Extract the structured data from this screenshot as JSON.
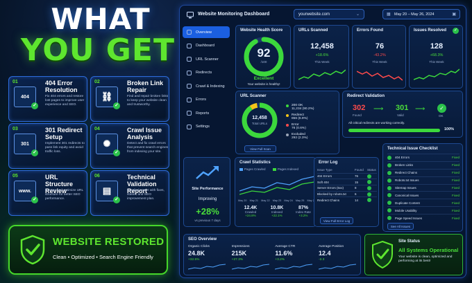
{
  "hero": {
    "line1": "WHAT",
    "line2": "YOU GET"
  },
  "features": [
    {
      "num": "01",
      "title": "404 Error Resolution",
      "desc": "Fix 404 errors and restore lost pages to improve user experience and SEO.",
      "icon": "404-window-icon",
      "badge": "404"
    },
    {
      "num": "02",
      "title": "Broken Link Repair",
      "desc": "Find and repair broken links to keep your website clean and trustworthy.",
      "icon": "broken-link-icon"
    },
    {
      "num": "03",
      "title": "301 Redirect Setup",
      "desc": "Implement 301 redirects to pass link equity and avoid traffic loss.",
      "icon": "redirect-301-icon",
      "badge": "301"
    },
    {
      "num": "04",
      "title": "Crawl Issue Analysis",
      "desc": "Detect and fix crawl errors that prevent search engines from indexing your site.",
      "icon": "bug-search-icon"
    },
    {
      "num": "05",
      "title": "URL Structure Review",
      "desc": "Review and optimize URL structure for better SEO performance.",
      "icon": "www-window-icon",
      "badge": "www."
    },
    {
      "num": "06",
      "title": "Technical Validation Report",
      "desc": "Detailed report with fixes, status, and SEO improvement plan.",
      "icon": "clipboard-report-icon"
    }
  ],
  "restored": {
    "title": "WEBSITE RESTORED",
    "subtitle": "Clean  •  Optimized  •  Search Engine Friendly"
  },
  "dashboard": {
    "title": "Website Monitoring Dashboard",
    "domain": "yourwebsite.com",
    "date_range": "May 20 – May 26, 2024",
    "nav": [
      "Overview",
      "Dashboard",
      "URL Scanner",
      "Redirects",
      "Crawl & Indexing",
      "Errors",
      "Reports",
      "Settings"
    ],
    "health": {
      "title": "Website Health Score",
      "score": "92",
      "out_of": "/100",
      "status": "Excellent",
      "note": "Your website is healthy!",
      "value": 0.92
    },
    "urls_scanned": {
      "title": "URLs Scanned",
      "value": "12,458",
      "change": "+18.6%",
      "period": "This Week"
    },
    "errors_found": {
      "title": "Errors Found",
      "value": "76",
      "change": "-43.2%",
      "period": "This Week"
    },
    "issues_resolved": {
      "title": "Issues Resolved",
      "value": "128",
      "change": "+68.3%",
      "period": "This Week"
    },
    "scanner": {
      "title": "URL Scanner",
      "total": "12,458",
      "total_label": "Total URLs",
      "button": "View Full Scan",
      "legend": [
        {
          "label": "200 OK",
          "value": "11,234 (90.2%)",
          "color": "#3cd83c"
        },
        {
          "label": "Redirect",
          "value": "856 (6.9%)",
          "color": "#f5c518"
        },
        {
          "label": "Error",
          "value": "76 (0.6%)",
          "color": "#ff4b4b"
        },
        {
          "label": "Excluded",
          "value": "292 (2.3%)",
          "color": "#9aa6b8"
        }
      ]
    },
    "redirect": {
      "title": "Redirect Validation",
      "from": "302",
      "from_label": "Found",
      "to": "301",
      "to_label": "Valid",
      "ok_label": "OK",
      "note": "All critical redirects are working correctly.",
      "percent": "100%",
      "progress": 1.0
    },
    "performance": {
      "title": "Site Performance",
      "status": "Improving",
      "change": "+28%",
      "period": "vs previous 7 days"
    },
    "crawl": {
      "title": "Crawl Statistics",
      "legend1": "Pages Crawled",
      "legend2": "Pages Indexed",
      "x_ticks": [
        "May 20",
        "May 21",
        "May 22",
        "May 23",
        "May 24",
        "May 25",
        "May 26"
      ],
      "stats": [
        {
          "value": "12.4K",
          "label": "Crawled",
          "change": "+24.8%"
        },
        {
          "value": "10.8K",
          "label": "Indexed",
          "change": "+22.1%"
        },
        {
          "value": "87%",
          "label": "Index Rate",
          "change": "+3.2%"
        }
      ]
    },
    "error_log": {
      "title": "Error Log",
      "headers": [
        "Issue Type",
        "Found",
        "Status"
      ],
      "rows": [
        [
          "404 Errors",
          "76"
        ],
        [
          "Soft 404",
          "15"
        ],
        [
          "Server Errors (5xx)",
          "8"
        ],
        [
          "Blocked by robots.txt",
          "6"
        ],
        [
          "Redirect Chains",
          "14"
        ]
      ],
      "button": "View Full Error Log"
    },
    "checklist": {
      "title": "Technical Issue Checklist",
      "status": "Fixed",
      "items": [
        "404 Errors",
        "Broken Links",
        "Redirect Chains",
        "Robots.txt Issues",
        "Sitemap Issues",
        "Canonical Issues",
        "Duplicate Content",
        "Mobile Usability",
        "Page Speed Issues"
      ],
      "button": "See All Issues"
    },
    "seo": {
      "title": "SEO Overview",
      "metrics": [
        {
          "label": "Organic Clicks",
          "value": "24.8K",
          "change": "+32.5%"
        },
        {
          "label": "Impressions",
          "value": "215K",
          "change": "+27.3%"
        },
        {
          "label": "Average CTR",
          "value": "11.6%",
          "change": "+3.2%"
        },
        {
          "label": "Average Position",
          "value": "12.4",
          "change": "-2.3"
        }
      ]
    },
    "site_status": {
      "title": "Site Status",
      "headline": "All Systems Operational",
      "note": "Your website is clean, optimized and performing at its best!"
    }
  }
}
